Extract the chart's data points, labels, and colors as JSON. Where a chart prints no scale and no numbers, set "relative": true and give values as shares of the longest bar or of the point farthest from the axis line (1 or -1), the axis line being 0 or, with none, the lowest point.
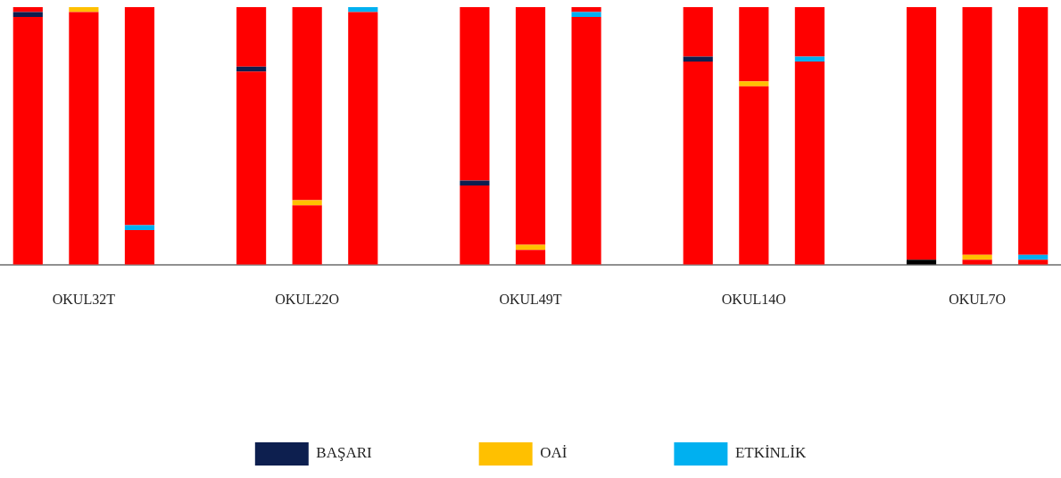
{
  "chart_data": {
    "type": "bar",
    "stacked": true,
    "relative": true,
    "legend": "bottom",
    "grid": false,
    "categories": [
      null,
      "OKUL32T",
      null,
      null,
      null,
      "OKUL22O",
      null,
      null,
      null,
      "OKUL49T",
      null,
      null,
      null,
      "OKUL14O",
      null,
      null,
      null,
      "OKUL7O",
      null
    ],
    "series": [
      {
        "color": "#ff0000",
        "values": [
          0.9615,
          0.9808,
          0.1346,
          null,
          0.75,
          0.2308,
          0.9808,
          null,
          0.3077,
          0.0577,
          0.9615,
          null,
          0.7885,
          0.6923,
          0.7885,
          null,
          0,
          0.0192,
          0.0192
        ]
      },
      {
        "name": "BAŞARI",
        "color": "#0d1f4f",
        "colors": [
          "#0d1f4f",
          null,
          null,
          null,
          "#0d1f4f",
          null,
          null,
          null,
          "#0d1f4f",
          null,
          null,
          null,
          "#0d1f4f",
          null,
          null,
          null,
          "#000000",
          null,
          null
        ],
        "values": [
          0.0192,
          null,
          null,
          null,
          0.0192,
          null,
          null,
          null,
          0.0192,
          null,
          null,
          null,
          0.0192,
          null,
          null,
          null,
          0.0192,
          null,
          null
        ]
      },
      {
        "name": "OAİ",
        "color": "#ffc000",
        "values": [
          null,
          0.0192,
          null,
          null,
          null,
          0.0192,
          null,
          null,
          null,
          0.0192,
          null,
          null,
          null,
          0.0192,
          null,
          null,
          null,
          0.0192,
          null
        ]
      },
      {
        "name": "ETKİNLİK",
        "color": "#00b0f0",
        "values": [
          null,
          null,
          0.0192,
          null,
          null,
          null,
          0.0192,
          null,
          null,
          null,
          0.0192,
          null,
          null,
          null,
          0.0192,
          null,
          null,
          null,
          0.0192
        ]
      },
      {
        "color": "#ff0000",
        "values": [
          0.0192,
          0,
          0.8462,
          null,
          0.2308,
          0.75,
          0,
          null,
          0.6731,
          0.9231,
          0.0192,
          null,
          0.1923,
          0.2885,
          0.1923,
          null,
          0.9808,
          0.9615,
          0.9615
        ]
      }
    ]
  }
}
